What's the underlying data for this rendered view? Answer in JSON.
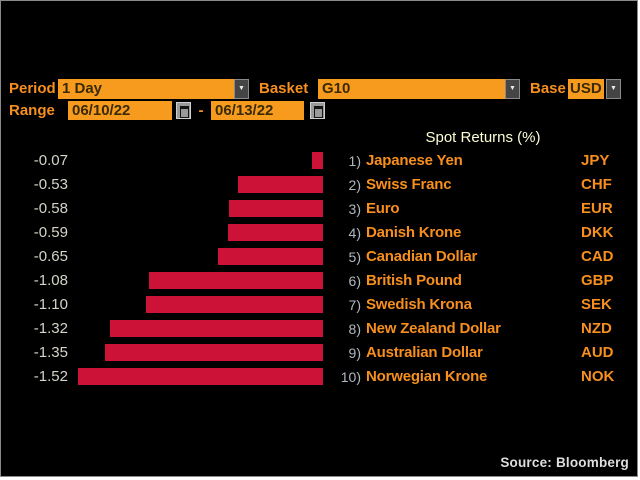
{
  "panel": {
    "background": "#000000",
    "border_color": "#8a8a8a"
  },
  "colors": {
    "amber_field": "#f79b1e",
    "amber_text": "#f78f1e",
    "field_text": "#3a2a05",
    "bar_red": "#cc1236",
    "value_text": "#d6d3c7",
    "index_text": "#b0b8c0",
    "title_text": "#fdffd6",
    "source_text": "#dedede"
  },
  "icons": {
    "dropdown_arrow": "▼",
    "calendar_icon": "calendar-grid"
  },
  "controls": {
    "period_label": "Period",
    "period_value": "1 Day",
    "basket_label": "Basket",
    "basket_value": "G10",
    "base_label": "Base",
    "base_value": "USD",
    "range_label": "Range",
    "range_start": "06/10/22",
    "range_separator": "-",
    "range_end": "06/13/22"
  },
  "chart_data": {
    "type": "bar",
    "orientation": "horizontal",
    "title": "Spot Returns (%)",
    "xlabel": "",
    "ylabel": "",
    "xlim": [
      -1.6,
      0
    ],
    "grid": false,
    "legend": false,
    "bar_color": "#cc1236",
    "index_suffix": ")",
    "categories": [
      "Japanese Yen",
      "Swiss Franc",
      "Euro",
      "Danish Krone",
      "Canadian Dollar",
      "British Pound",
      "Swedish Krona",
      "New Zealand Dollar",
      "Australian Dollar",
      "Norwegian Krone"
    ],
    "tickers": [
      "JPY",
      "CHF",
      "EUR",
      "DKK",
      "CAD",
      "GBP",
      "SEK",
      "NZD",
      "AUD",
      "NOK"
    ],
    "values": [
      -0.07,
      -0.53,
      -0.58,
      -0.59,
      -0.65,
      -1.08,
      -1.1,
      -1.32,
      -1.35,
      -1.52
    ],
    "value_labels": [
      "-0.07",
      "-0.53",
      "-0.58",
      "-0.59",
      "-0.65",
      "-1.08",
      "-1.10",
      "-1.32",
      "-1.35",
      "-1.52"
    ]
  },
  "footer": {
    "source": "Source: Bloomberg"
  }
}
